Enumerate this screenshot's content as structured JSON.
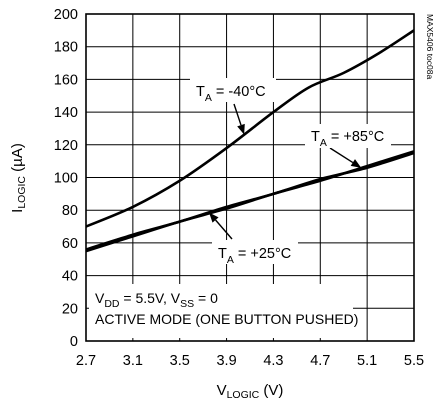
{
  "chart_data": {
    "type": "line",
    "xlabel": {
      "main": "V",
      "sub": "LOGIC",
      "unit": " (V)"
    },
    "ylabel": {
      "main": "I",
      "sub": "LOGIC",
      "unit": " (µA)"
    },
    "xlim": [
      2.7,
      5.5
    ],
    "ylim": [
      0,
      200
    ],
    "xticks": [
      2.7,
      3.1,
      3.5,
      3.9,
      4.3,
      4.7,
      5.1,
      5.5
    ],
    "xtick_labels": [
      "2.7",
      "3.1",
      "3.5",
      "3.9",
      "4.3",
      "4.7",
      "5.1",
      "5.5"
    ],
    "yticks": [
      0,
      20,
      40,
      60,
      80,
      100,
      120,
      140,
      160,
      180,
      200
    ],
    "ytick_labels": [
      "0",
      "20",
      "40",
      "60",
      "80",
      "100",
      "120",
      "140",
      "160",
      "180",
      "200"
    ],
    "grid": true,
    "series": [
      {
        "name": "TA = -40°C",
        "x": [
          2.7,
          3.1,
          3.5,
          3.9,
          4.3,
          4.6,
          4.9,
          5.2,
          5.5
        ],
        "y": [
          70,
          82,
          98,
          118,
          140,
          155,
          164,
          176,
          190
        ]
      },
      {
        "name": "TA = +25°C",
        "x": [
          2.7,
          3.1,
          3.5,
          3.9,
          4.3,
          4.7,
          5.1,
          5.5
        ],
        "y": [
          56,
          65,
          73,
          82,
          90,
          99,
          106,
          115
        ]
      },
      {
        "name": "TA = +85°C",
        "x": [
          2.7,
          3.1,
          3.5,
          3.9,
          4.3,
          4.7,
          5.1,
          5.5
        ],
        "y": [
          55,
          64,
          73,
          81,
          90,
          98,
          107,
          116
        ]
      }
    ],
    "annotations": [
      {
        "pre": "T",
        "sub": "A",
        "post": " = -40°C",
        "series": 0
      },
      {
        "pre": "T",
        "sub": "A",
        "post": " = +85°C",
        "series": 2
      },
      {
        "pre": "T",
        "sub": "A",
        "post": " = +25°C",
        "series": 1
      }
    ],
    "conditions": {
      "line1": {
        "a": "V",
        "a_sub": "DD",
        "b": " = 5.5V, V",
        "b_sub": "SS",
        "c": " = 0"
      },
      "line2": "ACTIVE MODE (ONE BUTTON PUSHED)"
    },
    "figure_id": "MAX5406 toc08a"
  }
}
